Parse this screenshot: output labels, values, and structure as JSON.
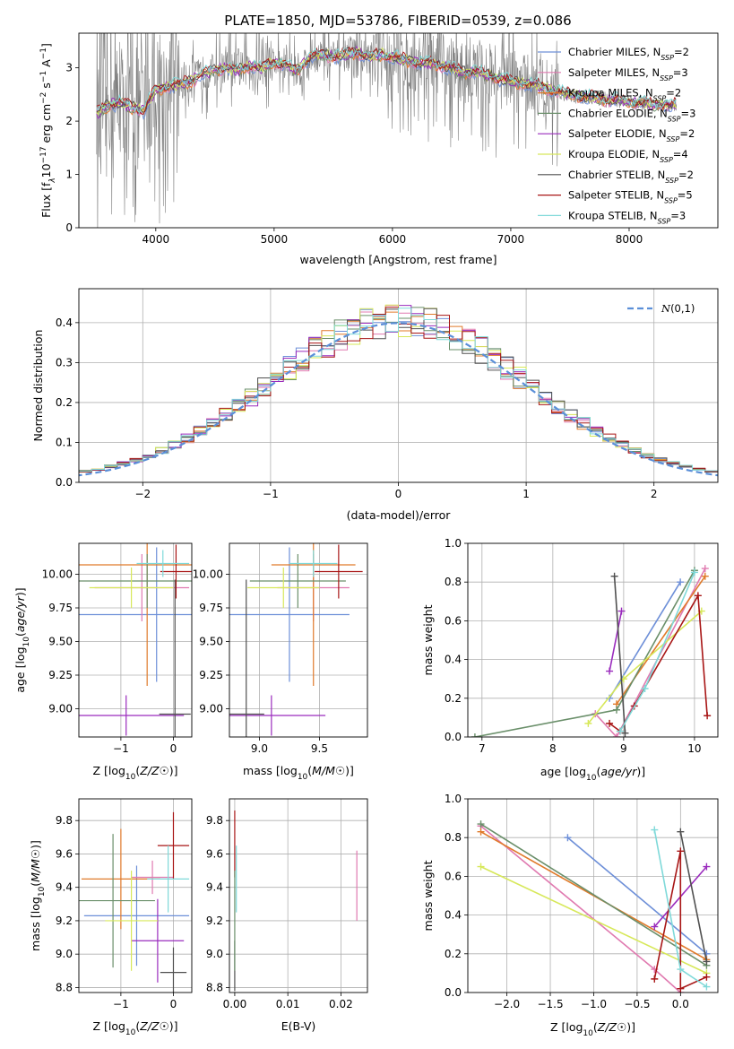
{
  "figure": {
    "title": "PLATE=1850, MJD=53786, FIBERID=0539, z=0.086"
  },
  "colors": {
    "s0": "#6d8fd8",
    "s1": "#e07ab0",
    "s2": "#e07a2a",
    "s3": "#6a8f6a",
    "s4": "#9a2bbd",
    "s5": "#d7e85a",
    "s6": "#505050",
    "s7": "#a81616",
    "s8": "#7fd9d9",
    "gray": "#808080",
    "norm": "#5b8fd8"
  },
  "chart_data": [
    {
      "id": "spectrum",
      "type": "line",
      "xlabel": "wavelength [Angstrom, rest frame]",
      "ylabel_parts": [
        "Flux [f",
        "λ",
        "10",
        "−17",
        " erg cm",
        "−2",
        " s",
        "−1",
        " A",
        "−1",
        "]"
      ],
      "xlim": [
        3350,
        8750
      ],
      "ylim": [
        0,
        3.65
      ],
      "xticks": [
        4000,
        5000,
        6000,
        7000,
        8000
      ],
      "yticks": [
        0,
        1,
        2,
        3
      ],
      "legend": {
        "position": "top-right",
        "entries": [
          {
            "name": "Chabrier MILES",
            "nssp": "2"
          },
          {
            "name": "Salpeter MILES",
            "nssp": "3"
          },
          {
            "name": "Kroupa MILES",
            "nssp": "2"
          },
          {
            "name": "Chabrier ELODIE",
            "nssp": "3"
          },
          {
            "name": "Salpeter ELODIE",
            "nssp": "2"
          },
          {
            "name": "Kroupa ELODIE",
            "nssp": "4"
          },
          {
            "name": "Chabrier STELIB",
            "nssp": "2"
          },
          {
            "name": "Salpeter STELIB",
            "nssp": "5"
          },
          {
            "name": "Kroupa STELIB",
            "nssp": "3"
          }
        ]
      },
      "model_continuum": {
        "x": [
          3500,
          3600,
          3700,
          3800,
          3900,
          4000,
          4100,
          4200,
          4300,
          4400,
          4500,
          4600,
          4700,
          4800,
          4900,
          5000,
          5100,
          5200,
          5300,
          5400,
          5500,
          5600,
          5700,
          5800,
          5900,
          6000,
          6100,
          6200,
          6300,
          6400,
          6500,
          6600,
          6700,
          6800,
          6900,
          7000,
          7100,
          7200,
          7300,
          7400,
          7500,
          7600,
          7700,
          7800,
          7900,
          8000,
          8100,
          8200,
          8300,
          8400
        ],
        "y": [
          2.15,
          2.3,
          2.35,
          2.25,
          2.2,
          2.6,
          2.65,
          2.7,
          2.75,
          2.9,
          2.95,
          3.0,
          2.95,
          3.05,
          3.0,
          3.1,
          3.05,
          2.95,
          3.2,
          3.25,
          3.2,
          3.25,
          3.3,
          3.2,
          3.25,
          3.2,
          3.15,
          3.1,
          3.1,
          3.05,
          3.0,
          2.9,
          2.95,
          2.85,
          2.8,
          2.75,
          2.7,
          2.7,
          2.6,
          2.55,
          2.5,
          2.45,
          2.45,
          2.4,
          2.4,
          2.35,
          2.35,
          2.3,
          2.3,
          2.3
        ]
      }
    },
    {
      "id": "residuals",
      "type": "histogram",
      "xlabel": "(data-model)/error",
      "ylabel": "Normed distribution",
      "xlim": [
        -2.5,
        2.5
      ],
      "ylim": [
        0,
        0.485
      ],
      "xticks": [
        -2,
        -1,
        0,
        1,
        2
      ],
      "yticks": [
        0.0,
        0.1,
        0.2,
        0.3,
        0.4
      ],
      "grid": true,
      "legend": {
        "position": "top-right",
        "label": "N(0,1)"
      },
      "bin_width": 0.1
    },
    {
      "id": "age-vs-Z",
      "type": "errorbar",
      "xlabel": "Z [log10(Z/Z☉)]",
      "ylabel": "age  [log10(age/yr)]",
      "xlim": [
        -1.8,
        0.35
      ],
      "ylim": [
        8.79,
        10.23
      ],
      "xticks": [
        -1,
        0
      ],
      "yticks": [
        9.0,
        9.25,
        9.5,
        9.75,
        10.0
      ],
      "grid": true,
      "points": [
        {
          "c": "s0",
          "x": -0.32,
          "xe": 1.5,
          "y": 9.7,
          "ye": 0.5
        },
        {
          "c": "s1",
          "x": -0.6,
          "xe": 0.9,
          "y": 9.9,
          "ye": 0.25
        },
        {
          "c": "s2",
          "x": -0.5,
          "xe": 1.6,
          "y": 10.07,
          "ye": 0.9
        },
        {
          "c": "s3",
          "x": -0.5,
          "xe": 1.4,
          "y": 9.95,
          "ye": 0.2
        },
        {
          "c": "s4",
          "x": -0.9,
          "xe": 1.1,
          "y": 8.95,
          "ye": 0.15
        },
        {
          "c": "s5",
          "x": -0.8,
          "xe": 0.8,
          "y": 9.9,
          "ye": 0.15
        },
        {
          "c": "s6",
          "x": 0.03,
          "xe": 0.3,
          "y": 8.96,
          "ye": 1.0
        },
        {
          "c": "s7",
          "x": 0.05,
          "xe": 0.3,
          "y": 10.02,
          "ye": 0.2
        },
        {
          "c": "s8",
          "x": -0.2,
          "xe": 0.5,
          "y": 10.08,
          "ye": 0.1
        }
      ]
    },
    {
      "id": "age-vs-mass",
      "type": "errorbar",
      "xlabel": "mass [log10(M/M☉)]",
      "ylabel": "",
      "xlim": [
        8.75,
        9.9
      ],
      "ylim": [
        8.79,
        10.23
      ],
      "xticks": [
        9.0,
        9.5
      ],
      "yticks": [
        9.0,
        9.25,
        9.5,
        9.75,
        10.0
      ],
      "grid": true,
      "points": [
        {
          "c": "s0",
          "x": 9.25,
          "xe": 0.5,
          "y": 9.7,
          "ye": 0.5
        },
        {
          "c": "s1",
          "x": 9.45,
          "xe": 0.3,
          "y": 9.9,
          "ye": 0.25
        },
        {
          "c": "s2",
          "x": 9.45,
          "xe": 0.35,
          "y": 10.07,
          "ye": 0.9
        },
        {
          "c": "s3",
          "x": 9.32,
          "xe": 0.4,
          "y": 9.95,
          "ye": 0.2
        },
        {
          "c": "s4",
          "x": 9.1,
          "xe": 0.45,
          "y": 8.95,
          "ye": 0.15
        },
        {
          "c": "s5",
          "x": 9.2,
          "xe": 0.3,
          "y": 9.9,
          "ye": 0.15
        },
        {
          "c": "s6",
          "x": 8.89,
          "xe": 0.15,
          "y": 8.96,
          "ye": 1.0
        },
        {
          "c": "s7",
          "x": 9.66,
          "xe": 0.2,
          "y": 10.02,
          "ye": 0.2
        },
        {
          "c": "s8",
          "x": 9.45,
          "xe": 0.2,
          "y": 10.08,
          "ye": 0.1
        }
      ]
    },
    {
      "id": "weight-vs-age",
      "type": "line",
      "xlabel": "age  [log10(age/yr)]",
      "ylabel": "mass weight",
      "xlim": [
        6.8,
        10.33
      ],
      "ylim": [
        0,
        1
      ],
      "xticks": [
        7,
        8,
        9,
        10
      ],
      "yticks": [
        0.0,
        0.2,
        0.4,
        0.6,
        0.8,
        1.0
      ],
      "grid": true,
      "series": [
        {
          "c": "s0",
          "x": [
            8.8,
            9.8
          ],
          "y": [
            0.2,
            0.8
          ]
        },
        {
          "c": "s1",
          "x": [
            8.6,
            8.9,
            10.15
          ],
          "y": [
            0.12,
            0.0,
            0.87
          ]
        },
        {
          "c": "s2",
          "x": [
            8.9,
            10.15
          ],
          "y": [
            0.17,
            0.83
          ]
        },
        {
          "c": "s3",
          "x": [
            6.9,
            8.9,
            10.0
          ],
          "y": [
            0.0,
            0.14,
            0.86
          ]
        },
        {
          "c": "s4",
          "x": [
            8.8,
            8.97
          ],
          "y": [
            0.34,
            0.65
          ]
        },
        {
          "c": "s5",
          "x": [
            8.5,
            9.0,
            10.1
          ],
          "y": [
            0.07,
            0.3,
            0.65
          ]
        },
        {
          "c": "s6",
          "x": [
            8.87,
            9.02
          ],
          "y": [
            0.83,
            0.02
          ]
        },
        {
          "c": "s7",
          "x": [
            8.8,
            8.95,
            9.15,
            10.05,
            10.18
          ],
          "y": [
            0.07,
            0.03,
            0.16,
            0.73,
            0.11
          ]
        },
        {
          "c": "s8",
          "x": [
            8.95,
            9.3,
            10.0
          ],
          "y": [
            0.03,
            0.25,
            0.85
          ]
        }
      ]
    },
    {
      "id": "mass-vs-Z",
      "type": "errorbar",
      "xlabel": "Z [log10(Z/Z☉)]",
      "ylabel": "mass [log10(M/M☉)]",
      "xlim": [
        -1.8,
        0.35
      ],
      "ylim": [
        8.77,
        9.93
      ],
      "xticks": [
        -1,
        0
      ],
      "yticks": [
        8.8,
        9.0,
        9.2,
        9.4,
        9.6,
        9.8
      ],
      "grid": true,
      "points": [
        {
          "c": "s0",
          "x": -0.7,
          "xe": 1.0,
          "y": 9.23,
          "ye": 0.3
        },
        {
          "c": "s1",
          "x": -0.4,
          "xe": 0.4,
          "y": 9.46,
          "ye": 0.1
        },
        {
          "c": "s2",
          "x": -1.0,
          "xe": 0.75,
          "y": 9.45,
          "ye": 0.3
        },
        {
          "c": "s3",
          "x": -1.15,
          "xe": 0.8,
          "y": 9.32,
          "ye": 0.4
        },
        {
          "c": "s4",
          "x": -0.3,
          "xe": 0.5,
          "y": 9.08,
          "ye": 0.25
        },
        {
          "c": "s5",
          "x": -0.8,
          "xe": 0.5,
          "y": 9.2,
          "ye": 0.3
        },
        {
          "c": "s6",
          "x": 0.0,
          "xe": 0.25,
          "y": 8.89,
          "ye": 0.15
        },
        {
          "c": "s7",
          "x": 0.0,
          "xe": 0.3,
          "y": 9.65,
          "ye": 0.2
        },
        {
          "c": "s8",
          "x": -0.1,
          "xe": 0.4,
          "y": 9.45,
          "ye": 0.2
        }
      ]
    },
    {
      "id": "mass-vs-EBV",
      "type": "errorbar",
      "xlabel": "E(B-V)",
      "ylabel": "",
      "xlim": [
        -0.001,
        0.025
      ],
      "ylim": [
        8.77,
        9.93
      ],
      "xticks": [
        0.0,
        0.01,
        0.02
      ],
      "yticks": [
        8.8,
        9.0,
        9.2,
        9.4,
        9.6,
        9.8
      ],
      "grid": true,
      "points": [
        {
          "c": "s6",
          "x": 0.0,
          "y": 8.93,
          "ye": 0.15
        },
        {
          "c": "s7",
          "x": 0.0,
          "y": 9.66,
          "ye": 0.2
        },
        {
          "c": "s8",
          "x": 0.0003,
          "y": 9.45,
          "ye": 0.2
        },
        {
          "c": "s3",
          "x": 0.0,
          "y": 9.2,
          "ye": 0.3
        },
        {
          "c": "s1",
          "x": 0.023,
          "y": 9.41,
          "ye": 0.21
        }
      ]
    },
    {
      "id": "weight-vs-Z",
      "type": "line",
      "xlabel": "Z [log10(Z/Z☉)]",
      "ylabel": "mass weight",
      "xlim": [
        -2.45,
        0.43
      ],
      "ylim": [
        0,
        1
      ],
      "xticks": [
        -2.0,
        -1.5,
        -1.0,
        -0.5,
        0.0
      ],
      "yticks": [
        0.0,
        0.2,
        0.4,
        0.6,
        0.8,
        1.0
      ],
      "grid": true,
      "series": [
        {
          "c": "s0",
          "x": [
            -1.3,
            0.3
          ],
          "y": [
            0.8,
            0.2
          ]
        },
        {
          "c": "s1",
          "x": [
            -2.3,
            -0.3,
            0.0
          ],
          "y": [
            0.86,
            0.12,
            0.0
          ]
        },
        {
          "c": "s2",
          "x": [
            -2.3,
            0.3
          ],
          "y": [
            0.83,
            0.17
          ]
        },
        {
          "c": "s3",
          "x": [
            -2.3,
            0.3
          ],
          "y": [
            0.87,
            0.14
          ]
        },
        {
          "c": "s4",
          "x": [
            -0.3,
            0.3
          ],
          "y": [
            0.34,
            0.65
          ]
        },
        {
          "c": "s5",
          "x": [
            -2.3,
            0.3
          ],
          "y": [
            0.65,
            0.1
          ]
        },
        {
          "c": "s6",
          "x": [
            0.0,
            0.3
          ],
          "y": [
            0.83,
            0.16
          ]
        },
        {
          "c": "s7",
          "x": [
            -0.3,
            0.0,
            0.0,
            0.3
          ],
          "y": [
            0.07,
            0.73,
            0.02,
            0.08
          ]
        },
        {
          "c": "s8",
          "x": [
            -0.3,
            0.0,
            0.3
          ],
          "y": [
            0.84,
            0.12,
            0.03
          ]
        }
      ]
    }
  ]
}
